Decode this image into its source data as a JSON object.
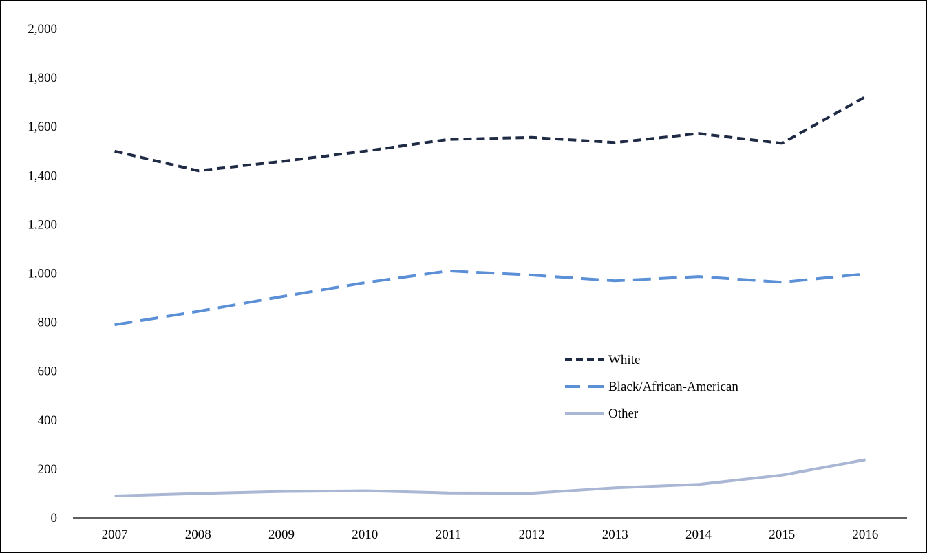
{
  "chart_data": {
    "type": "line",
    "title": "",
    "xlabel": "",
    "ylabel": "",
    "categories": [
      "2007",
      "2008",
      "2009",
      "2010",
      "2011",
      "2012",
      "2013",
      "2014",
      "2015",
      "2016"
    ],
    "ylim": [
      0,
      2000
    ],
    "yticks": [
      0,
      200,
      400,
      600,
      800,
      1000,
      1200,
      1400,
      1600,
      1800,
      2000
    ],
    "ytick_labels": [
      "0",
      "200",
      "400",
      "600",
      "800",
      "1,000",
      "1,200",
      "1,400",
      "1,600",
      "1,800",
      "2,000"
    ],
    "grid": false,
    "legend_position": "center-right",
    "series": [
      {
        "name": "White",
        "color": "#1f2a44",
        "style": "short-dash",
        "values": [
          1500,
          1420,
          1458,
          1500,
          1548,
          1556,
          1535,
          1572,
          1532,
          1722
        ]
      },
      {
        "name": "Black/African-American",
        "color": "#5b8fd6",
        "style": "long-dash",
        "values": [
          790,
          845,
          905,
          962,
          1010,
          993,
          970,
          987,
          964,
          998
        ]
      },
      {
        "name": "Other",
        "color": "#a9b7d4",
        "style": "solid",
        "values": [
          90,
          100,
          108,
          111,
          102,
          101,
          123,
          137,
          175,
          238
        ]
      }
    ]
  }
}
